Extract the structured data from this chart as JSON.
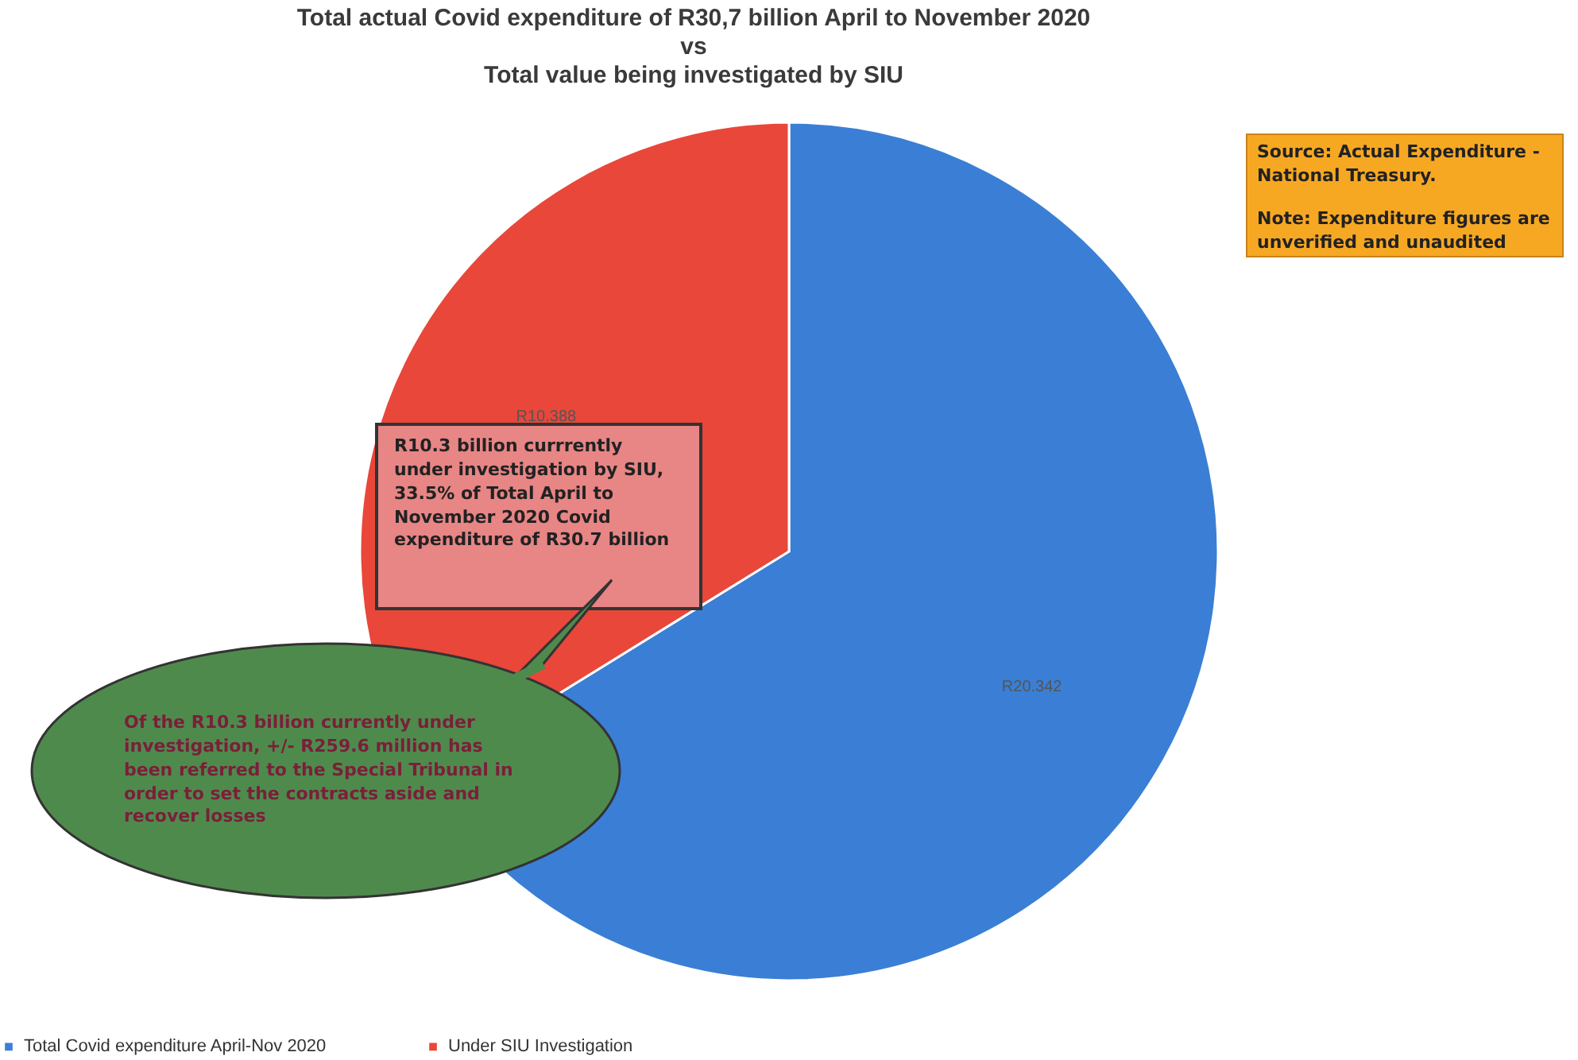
{
  "chart_data": {
    "type": "pie",
    "title": "Total actual Covid expenditure of R30,7 billion April to November 2020\nvs\nTotal value being investigated by SIU",
    "categories": [
      "Total Covid expenditure April-Nov 2020",
      "Under SIU Investigation"
    ],
    "values": [
      20.342,
      10.388
    ],
    "colors": [
      "#3a7fd5",
      "#e8473a"
    ],
    "value_labels": [
      "R20.342",
      "R10.388"
    ],
    "legend": "bottom",
    "annotations": [
      "Source: Actual Expenditure - National Treasury.",
      "Note: Expenditure figures are unverified and unaudited",
      "R10.3 billion currrently under investigation by SIU, 33.5% of Total April to November 2020 Covid expenditure of R30.7 billion",
      "Of the R10.3 billion currently under investigation, +/- R259.6 million has been referred to the Special Tribunal in order to set the contracts aside and recover losses"
    ]
  }
}
